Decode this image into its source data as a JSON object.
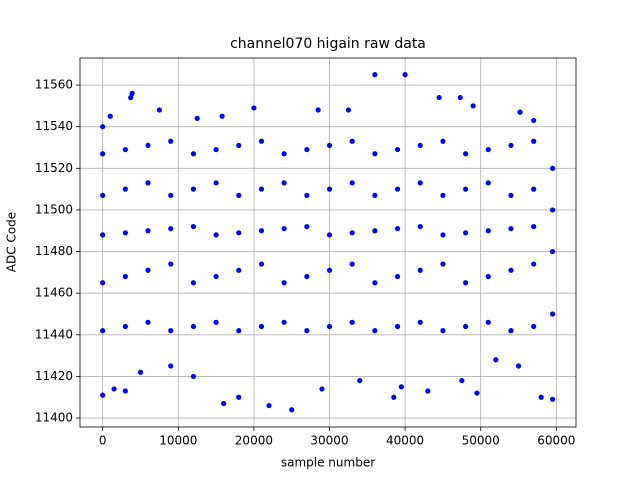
{
  "chart_data": {
    "type": "scatter",
    "title": "channel070 higain raw data",
    "xlabel": "sample number",
    "ylabel": "ADC Code",
    "xlim": [
      -3000,
      62600
    ],
    "ylim": [
      11395.7,
      11573
    ],
    "xticks": [
      0,
      10000,
      20000,
      30000,
      40000,
      50000,
      60000
    ],
    "yticks": [
      11400,
      11420,
      11440,
      11460,
      11480,
      11500,
      11520,
      11540,
      11560
    ],
    "grid": true,
    "color": "#0000ff",
    "x": [
      36000,
      40000,
      3900,
      3700,
      47300,
      20000,
      7500,
      28500,
      32500,
      49000,
      44500,
      55200,
      57000,
      15800,
      1000,
      12500,
      0,
      0,
      25000,
      22000,
      16000,
      18000,
      38500,
      49500,
      58000,
      59500,
      43000,
      29000,
      1500,
      3000,
      39500,
      47500,
      34000,
      12000,
      5000,
      55000,
      9000,
      52000,
      0,
      0,
      0,
      0,
      0,
      3000,
      3000,
      3000,
      3000,
      3000,
      6000,
      6000,
      6000,
      6000,
      6000,
      9000,
      9000,
      9000,
      9000,
      9000,
      12000,
      12000,
      12000,
      12000,
      12000,
      15000,
      15000,
      15000,
      15000,
      15000,
      18000,
      18000,
      18000,
      18000,
      18000,
      21000,
      21000,
      21000,
      21000,
      21000,
      24000,
      24000,
      24000,
      24000,
      24000,
      27000,
      27000,
      27000,
      27000,
      27000,
      30000,
      30000,
      30000,
      30000,
      30000,
      33000,
      33000,
      33000,
      33000,
      33000,
      36000,
      36000,
      36000,
      36000,
      36000,
      39000,
      39000,
      39000,
      39000,
      39000,
      42000,
      42000,
      42000,
      42000,
      42000,
      45000,
      45000,
      45000,
      45000,
      45000,
      48000,
      48000,
      48000,
      48000,
      48000,
      51000,
      51000,
      51000,
      51000,
      51000,
      54000,
      54000,
      54000,
      54000,
      54000,
      57000,
      57000,
      57000,
      57000,
      57000,
      59500,
      59500,
      59500,
      59500
    ],
    "y": [
      11565,
      11565,
      11556,
      11554,
      11554,
      11549,
      11548,
      11548,
      11548,
      11550,
      11554,
      11547,
      11543,
      11545,
      11545,
      11544,
      11540,
      11411,
      11404,
      11406,
      11407,
      11410,
      11410,
      11412,
      11410,
      11409,
      11413,
      11414,
      11414,
      11413,
      11415,
      11418,
      11418,
      11420,
      11422,
      11425,
      11425,
      11428,
      11442,
      11465,
      11488,
      11507,
      11527,
      11444,
      11468,
      11489,
      11510,
      11529,
      11446,
      11471,
      11490,
      11513,
      11531,
      11442,
      11474,
      11491,
      11507,
      11533,
      11444,
      11465,
      11492,
      11510,
      11527,
      11446,
      11468,
      11488,
      11513,
      11529,
      11442,
      11471,
      11489,
      11507,
      11531,
      11444,
      11474,
      11490,
      11510,
      11533,
      11446,
      11465,
      11491,
      11513,
      11527,
      11442,
      11468,
      11492,
      11507,
      11529,
      11444,
      11471,
      11488,
      11510,
      11531,
      11446,
      11474,
      11489,
      11513,
      11533,
      11442,
      11465,
      11490,
      11507,
      11527,
      11444,
      11468,
      11491,
      11510,
      11529,
      11446,
      11471,
      11492,
      11513,
      11531,
      11442,
      11474,
      11488,
      11507,
      11533,
      11444,
      11465,
      11489,
      11510,
      11527,
      11446,
      11468,
      11490,
      11513,
      11529,
      11442,
      11471,
      11491,
      11507,
      11531,
      11444,
      11474,
      11492,
      11510,
      11533,
      11450,
      11480,
      11500,
      11520
    ]
  }
}
